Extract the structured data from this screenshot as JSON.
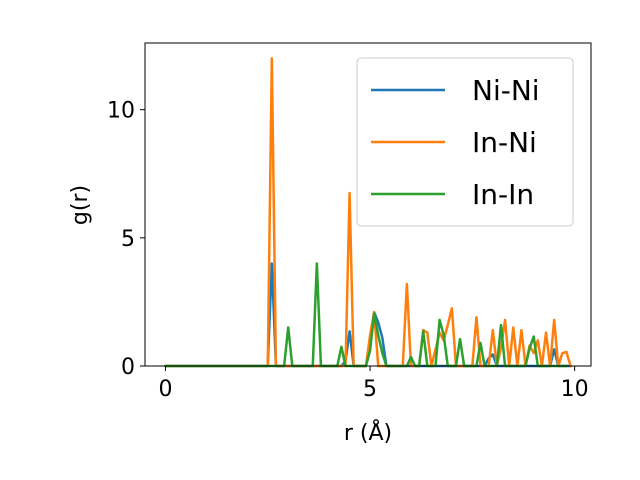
{
  "chart_data": {
    "type": "line",
    "title": "",
    "xlabel": "r (Å)",
    "ylabel": "g(r)",
    "xlim": [
      -0.5,
      10.4
    ],
    "ylim": [
      0,
      12.6
    ],
    "xticks": [
      0,
      5,
      10
    ],
    "yticks": [
      0,
      5,
      10
    ],
    "grid": false,
    "legend_position": "top-right",
    "series": [
      {
        "name": "Ni-Ni",
        "color": "#1f77b4",
        "x": [
          0,
          2.5,
          2.6,
          2.7,
          4.3,
          4.4,
          4.5,
          4.6,
          4.9,
          5.0,
          5.1,
          5.2,
          5.3,
          5.4,
          7.8,
          7.9,
          8.0,
          8.1,
          9.4,
          9.5,
          9.6,
          9.9
        ],
        "y": [
          0,
          0,
          4.0,
          0,
          0,
          0.2,
          1.35,
          0,
          0,
          0.9,
          2.1,
          1.7,
          1.1,
          0,
          0,
          0.3,
          0.45,
          0,
          0,
          0.65,
          0,
          0
        ]
      },
      {
        "name": "In-Ni",
        "color": "#ff7f0e",
        "x": [
          0,
          2.5,
          2.6,
          2.7,
          4.4,
          4.5,
          4.6,
          4.9,
          5.0,
          5.1,
          5.2,
          5.8,
          5.9,
          6.0,
          6.2,
          6.3,
          6.4,
          6.5,
          6.7,
          6.8,
          6.9,
          7.0,
          7.1,
          7.5,
          7.6,
          7.7,
          7.9,
          8.0,
          8.1,
          8.2,
          8.3,
          8.4,
          8.5,
          8.6,
          8.7,
          8.8,
          8.9,
          9.0,
          9.1,
          9.2,
          9.3,
          9.4,
          9.5,
          9.6,
          9.7,
          9.8,
          9.9
        ],
        "y": [
          0,
          0,
          12.0,
          0,
          0,
          6.75,
          0,
          0,
          1.2,
          2.1,
          0,
          0,
          3.2,
          0,
          0,
          1.4,
          1.3,
          0,
          1.3,
          1.0,
          1.6,
          2.25,
          0,
          0,
          1.9,
          0,
          0,
          1.4,
          0,
          0.7,
          1.8,
          0,
          1.5,
          0,
          1.4,
          0,
          0.8,
          0.5,
          1.0,
          0,
          1.3,
          0,
          1.8,
          0,
          0.5,
          0.55,
          0
        ]
      },
      {
        "name": "In-In",
        "color": "#2ca02c",
        "x": [
          0,
          2.9,
          3.0,
          3.1,
          3.6,
          3.7,
          3.8,
          4.2,
          4.3,
          4.4,
          4.9,
          5.0,
          5.1,
          5.2,
          5.3,
          5.4,
          5.9,
          6.0,
          6.1,
          6.2,
          6.3,
          6.4,
          6.6,
          6.7,
          6.8,
          6.9,
          7.1,
          7.2,
          7.3,
          7.6,
          7.7,
          7.8,
          8.1,
          8.2,
          8.3,
          8.8,
          8.9,
          9.0,
          9.1,
          9.2,
          9.8
        ],
        "y": [
          0,
          0,
          1.5,
          0,
          0,
          4.0,
          0,
          0,
          0.75,
          0,
          0,
          0.6,
          2.05,
          1.2,
          0.5,
          0,
          0,
          0.35,
          0,
          0,
          1.35,
          0,
          0,
          1.8,
          1.2,
          0,
          0,
          1.05,
          0,
          0,
          0.9,
          0,
          0,
          1.6,
          0,
          0,
          0.7,
          1.15,
          0,
          0,
          0
        ]
      }
    ]
  }
}
